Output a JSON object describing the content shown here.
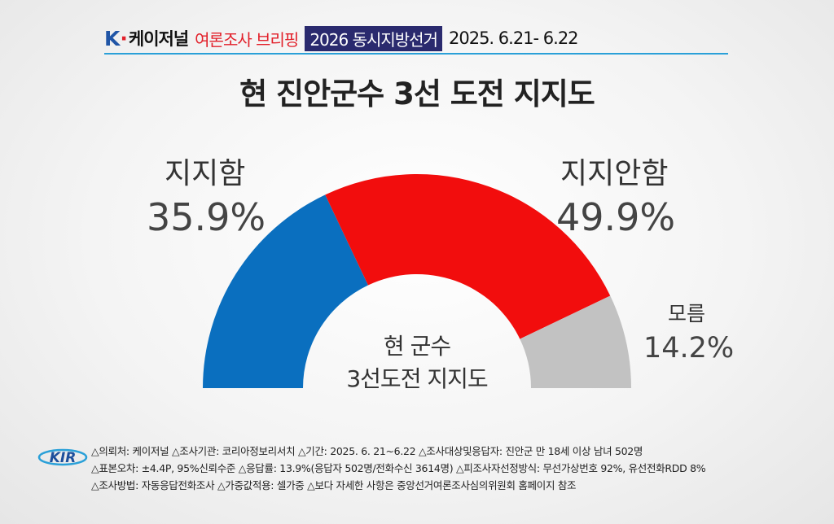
{
  "header": {
    "brand_k": "K",
    "brand_dot": "·",
    "brand_name": "케이저널",
    "briefing": "여론조사 브리핑",
    "election": "2026 동시지방선거",
    "date": "2025. 6.21- 6.22"
  },
  "colors": {
    "support": "#0a6fbf",
    "oppose": "#f20d0d",
    "unknown": "#c2c2c2",
    "header_line": "#2aa0d8",
    "election_box": "#2a2a6e"
  },
  "chart_data": {
    "type": "pie",
    "style": "semicircle-donut",
    "title": "현 진안군수 3선 도전 지지도",
    "center_label": [
      "현 군수",
      "3선도전 지지도"
    ],
    "slices": [
      {
        "label": "지지함",
        "value": 35.9,
        "value_label": "35.9%",
        "color": "#0a6fbf"
      },
      {
        "label": "지지안함",
        "value": 49.9,
        "value_label": "49.9%",
        "color": "#f20d0d"
      },
      {
        "label": "모름",
        "value": 14.2,
        "value_label": "14.2%",
        "color": "#c2c2c2"
      }
    ]
  },
  "footer": {
    "logo_text": "KIR",
    "lines": [
      "△의뢰처: 케이저널 △조사기관: 코리아정보리서치 △기간: 2025. 6. 21~6.22 △조사대상및응답자: 진안군 만 18세 이상 남녀 502명",
      "△표본오차: ±4.4P, 95%신뢰수준 △응답률: 13.9%(응답자 502명/전화수신 3614명) △피조사자선정방식: 무선가상번호 92%, 유선전화RDD 8%",
      "△조사방법: 자동응답전화조사 △가중값적용: 셀가중 △보다 자세한 사항은 중앙선거여론조사심의위원회 홈페이지 참조"
    ]
  }
}
